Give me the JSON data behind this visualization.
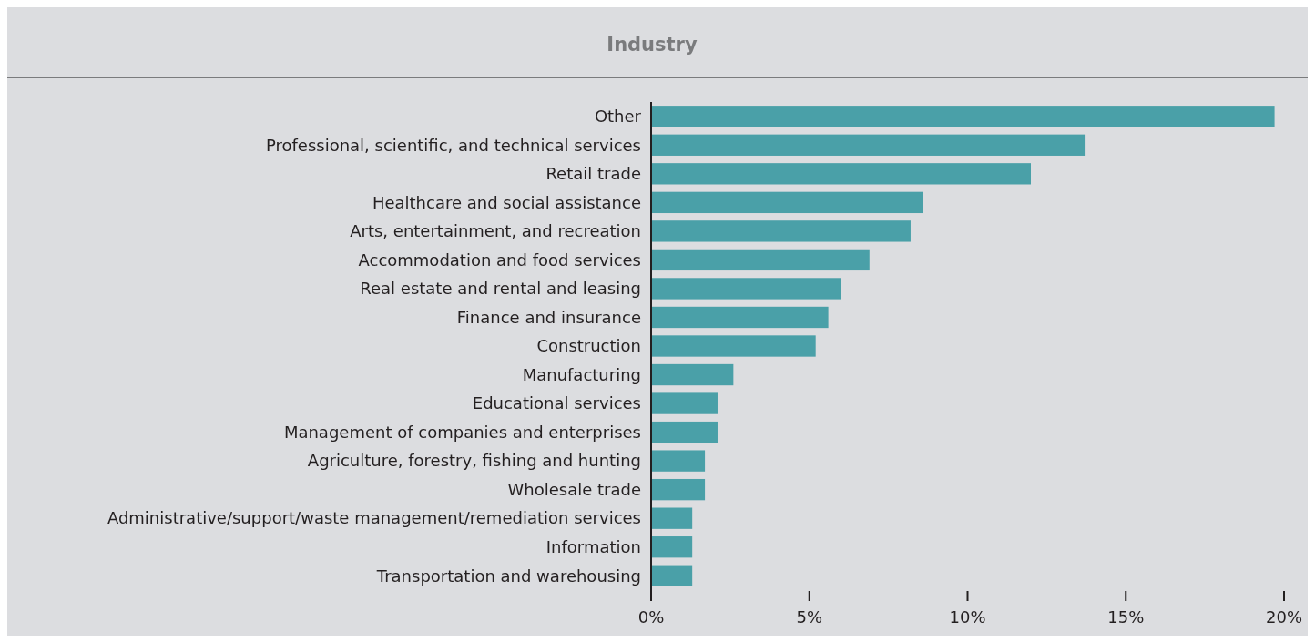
{
  "chart_data": {
    "type": "bar",
    "title": "Industry",
    "orientation": "horizontal",
    "categories": [
      "Other",
      "Professional, scientific, and technical services",
      "Retail trade",
      "Healthcare and social assistance",
      "Arts, entertainment, and recreation",
      "Accommodation and food services",
      "Real estate and rental and leasing",
      "Finance and insurance",
      "Construction",
      "Manufacturing",
      "Educational services",
      "Management of companies and enterprises",
      "Agriculture, forestry, fishing and hunting",
      "Wholesale trade",
      "Administrative/support/waste management/remediation services",
      "Information",
      "Transportation and warehousing"
    ],
    "values": [
      19.7,
      13.7,
      12.0,
      8.6,
      8.2,
      6.9,
      6.0,
      5.6,
      5.2,
      2.6,
      2.1,
      2.1,
      1.7,
      1.7,
      1.3,
      1.3,
      1.3
    ],
    "color": "#4aa0a8",
    "xlim": [
      0,
      20
    ],
    "xticks": [
      {
        "value": 0,
        "label": "0%"
      },
      {
        "value": 5,
        "label": "5%"
      },
      {
        "value": 10,
        "label": "10%"
      },
      {
        "value": 15,
        "label": "15%"
      },
      {
        "value": 20,
        "label": "20%"
      }
    ],
    "grid": false
  }
}
